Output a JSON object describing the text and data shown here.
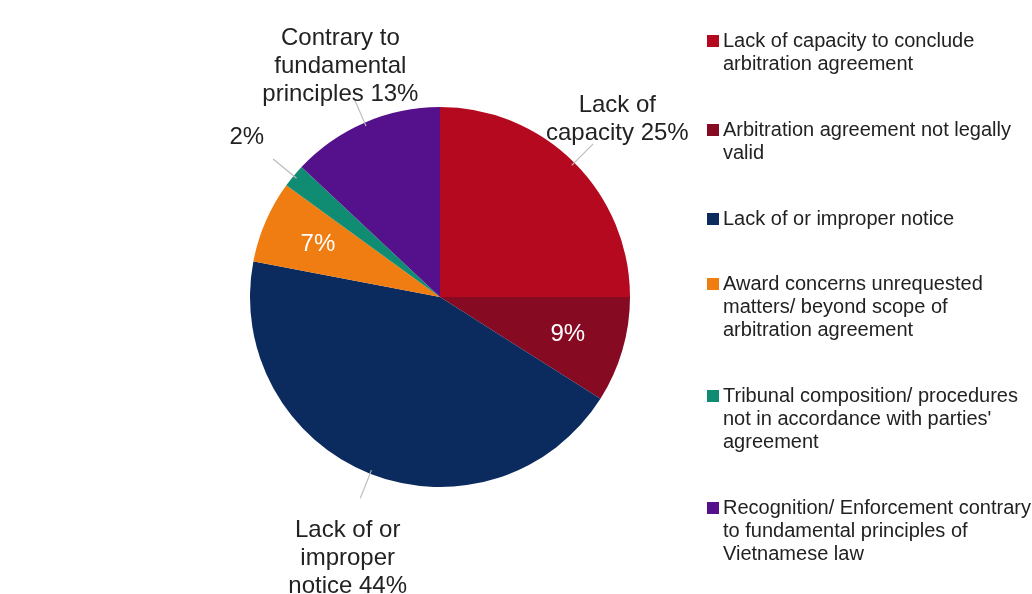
{
  "chart_data": {
    "type": "pie",
    "categories": [
      "Lack of capacity to conclude arbitration agreement",
      "Arbitration agreement not legally valid",
      "Lack of or improper notice",
      "Award concerns unrequested matters/ beyond scope of arbitration agreement",
      "Tribunal composition/ procedures not in accordance with parties' agreement",
      "Recognition/ Enforcement contrary to fundamental principles of Vietnamese law"
    ],
    "values": [
      25,
      9,
      44,
      7,
      2,
      13
    ],
    "colors": [
      "#b5091f",
      "#860a22",
      "#0b2a5e",
      "#f07d12",
      "#0f8c72",
      "#55108c"
    ],
    "value_labels": [
      "Lack of capacity 25%",
      "9%",
      "Lack of or improper notice 44%",
      "7%",
      "2%",
      "Contrary to fundamental principles 13%"
    ],
    "legend": "right"
  }
}
